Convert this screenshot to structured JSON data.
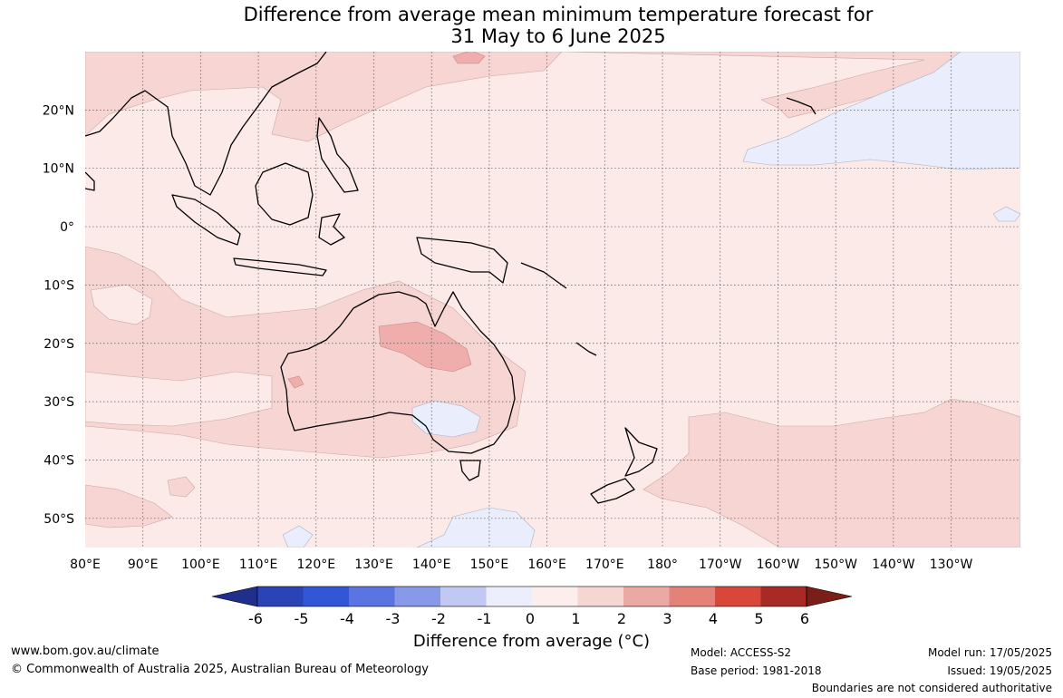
{
  "title": {
    "line1": "Difference from average mean minimum temperature forecast for",
    "line2": "31 May to 6 June 2025"
  },
  "map": {
    "lon_labels": [
      "80°E",
      "90°E",
      "100°E",
      "110°E",
      "120°E",
      "130°E",
      "140°E",
      "150°E",
      "160°E",
      "170°E",
      "180°",
      "170°W",
      "160°W",
      "150°W",
      "140°W",
      "130°W"
    ],
    "lat_labels": [
      "20°N",
      "10°N",
      "0°",
      "10°S",
      "20°S",
      "30°S",
      "40°S",
      "50°S"
    ],
    "lon_range": [
      80,
      242
    ],
    "lat_range": [
      -55,
      30
    ],
    "grid": true,
    "colors": {
      "anomaly_0_1": "#fbeae8",
      "anomaly_1_2": "#f6d5d3",
      "anomaly_2_3": "#efaeab",
      "anomaly_neg1_0": "#e9edfc",
      "coastline": "#000000",
      "border": "#888888"
    }
  },
  "colorbar": {
    "ticks": [
      "-6",
      "-5",
      "-4",
      "-3",
      "-2",
      "-1",
      "0",
      "1",
      "2",
      "3",
      "4",
      "5",
      "6"
    ],
    "colors": [
      "#1f2f8a",
      "#2a44b8",
      "#3157d6",
      "#5a75e2",
      "#8899ea",
      "#c1c8f2",
      "#eceefb",
      "#fbeeec",
      "#f6d6d3",
      "#eba9a5",
      "#e48178",
      "#d9473b",
      "#a82a24",
      "#7a1e1a"
    ],
    "title": "Difference from average (°C)"
  },
  "footer": {
    "website": "www.bom.gov.au/climate",
    "copyright": "© Commonwealth of Australia 2025, Australian Bureau of Meteorology",
    "model": "Model: ACCESS-S2",
    "base_period": "Base period: 1981-2018",
    "model_run": "Model run: 17/05/2025",
    "issued": "Issued: 19/05/2025",
    "disclaimer": "Boundaries are not considered authoritative"
  }
}
